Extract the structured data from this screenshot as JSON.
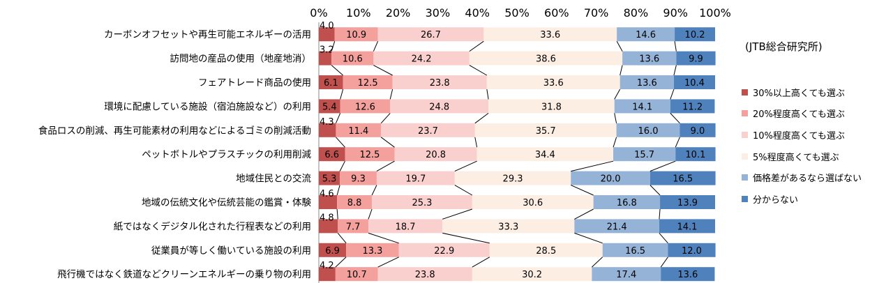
{
  "source_note": "(JTB総合研究所)",
  "chart_data": {
    "type": "bar",
    "orientation": "horizontal",
    "stacked": true,
    "percent_scale": true,
    "xlim": [
      0,
      100
    ],
    "x_ticks": [
      "0%",
      "10%",
      "20%",
      "30%",
      "40%",
      "50%",
      "60%",
      "70%",
      "80%",
      "90%",
      "100%"
    ],
    "categories": [
      "カーボンオフセットや再生可能エネルギーの活用",
      "訪問地の産品の使用（地産地消）",
      "フェアトレード商品の使用",
      "環境に配慮している施設（宿泊施設など）の利用",
      "食品ロスの削減、再生可能素材の利用などによるゴミの削減活動",
      "ペットボトルやプラスチックの利用削減",
      "地域住民との交流",
      "地域の伝統文化や伝統芸能の鑑賞・体験",
      "紙ではなくデジタル化された行程表などの利用",
      "従業員が等しく働いている施設の利用",
      "飛行機ではなく鉄道などクリーンエネルギーの乗り物の利用"
    ],
    "series": [
      {
        "name": "30%以上高くても選ぶ",
        "color": "#C0504D",
        "values": [
          4.0,
          3.2,
          6.1,
          5.4,
          4.3,
          6.6,
          5.3,
          4.6,
          4.8,
          6.9,
          4.2
        ]
      },
      {
        "name": "20%程度高くても選ぶ",
        "color": "#F4A09C",
        "values": [
          10.9,
          10.6,
          12.5,
          12.6,
          11.4,
          12.5,
          9.3,
          8.8,
          7.7,
          13.3,
          10.7
        ]
      },
      {
        "name": "10%程度高くても選ぶ",
        "color": "#FAD0CF",
        "values": [
          26.7,
          24.2,
          23.8,
          24.8,
          23.7,
          20.8,
          19.7,
          25.3,
          18.7,
          22.9,
          23.8
        ]
      },
      {
        "name": "5%程度高くても選ぶ",
        "color": "#FDEEE4",
        "values": [
          33.6,
          38.6,
          33.6,
          31.8,
          35.7,
          34.4,
          29.3,
          30.6,
          33.3,
          28.5,
          30.2
        ]
      },
      {
        "name": "価格差があるなら選ばない",
        "color": "#95B3D7",
        "values": [
          14.6,
          13.6,
          13.6,
          14.1,
          16.0,
          15.7,
          20.0,
          16.8,
          21.4,
          16.5,
          17.4
        ]
      },
      {
        "name": "分からない",
        "color": "#4F81BD",
        "values": [
          10.2,
          9.9,
          10.4,
          11.2,
          9.0,
          10.1,
          16.5,
          13.9,
          14.1,
          12.0,
          13.6
        ]
      }
    ],
    "value_labels": [
      [
        "4.0",
        "10.9",
        "26.7",
        "33.6",
        "14.6",
        "10.2"
      ],
      [
        "3.2",
        "10.6",
        "24.2",
        "38.6",
        "13.6",
        "9.9"
      ],
      [
        "6.1",
        "12.5",
        "23.8",
        "33.6",
        "13.6",
        "10.4"
      ],
      [
        "5.4",
        "12.6",
        "24.8",
        "31.8",
        "14.1",
        "11.2"
      ],
      [
        "4.3",
        "11.4",
        "23.7",
        "35.7",
        "16.0",
        "9.0"
      ],
      [
        "6.6",
        "12.5",
        "20.8",
        "34.4",
        "15.7",
        "10.1"
      ],
      [
        "5.3",
        "9.3",
        "19.7",
        "29.3",
        "20.0",
        "16.5"
      ],
      [
        "4.6",
        "8.8",
        "25.3",
        "30.6",
        "16.8",
        "13.9"
      ],
      [
        "4.8",
        "7.7",
        "18.7",
        "33.3",
        "21.4",
        "14.1"
      ],
      [
        "6.9",
        "13.3",
        "22.9",
        "28.5",
        "16.5",
        "12.0"
      ],
      [
        "4.2",
        "10.7",
        "23.8",
        "30.2",
        "17.4",
        "13.6"
      ]
    ],
    "series_lines": true,
    "gridlines": false,
    "legend_position": "right"
  }
}
